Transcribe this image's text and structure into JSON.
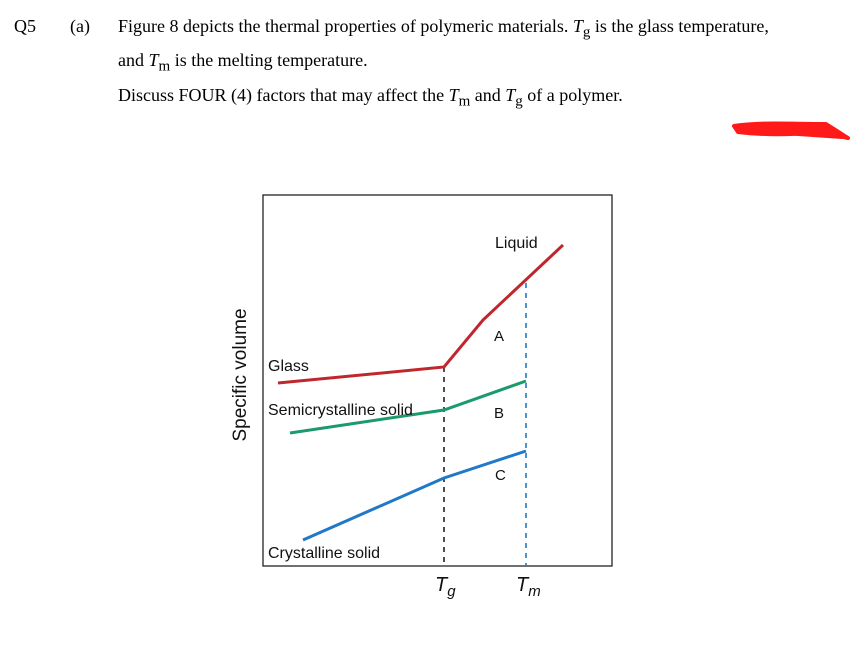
{
  "question": {
    "number": "Q5",
    "part": "(a)",
    "line1": {
      "a": "Figure 8 depicts the thermal properties of polymeric materials. ",
      "tg_main": "T",
      "tg_sub": "g",
      "b": " is the glass temperature,"
    },
    "line2": {
      "a": "and ",
      "tm_main": "T",
      "tm_sub": "m",
      "b": " is the melting temperature."
    },
    "line3": {
      "a": "Discuss FOUR (4) factors that may affect the ",
      "tm_main": "T",
      "tm_sub": "m",
      "mid": " and ",
      "tg_main": "T",
      "tg_sub": "g",
      "b": " of a polymer."
    }
  },
  "figure": {
    "ylabel": "Specific volume",
    "labels": {
      "liquid": "Liquid",
      "glass": "Glass",
      "semicrystalline": "Semicrystalline solid",
      "crystalline": "Crystalline solid",
      "a": "A",
      "b": "B",
      "c": "C"
    },
    "ticks": {
      "tg_main": "T",
      "tg_sub": "g",
      "tm_main": "T",
      "tm_sub": "m"
    },
    "colors": {
      "glass_liquid": "#c0272d",
      "semicrystalline": "#1b9a6b",
      "crystalline": "#1f78c8",
      "redaction": "#ff1a1a"
    }
  }
}
